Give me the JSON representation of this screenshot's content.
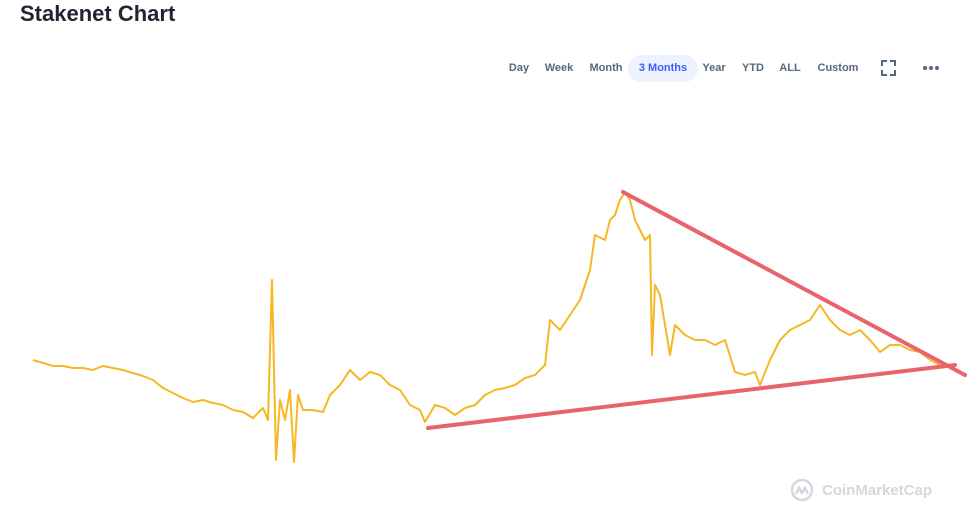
{
  "chart_data": {
    "type": "line",
    "title": "Stakenet Chart",
    "x": [
      0,
      10,
      20,
      30,
      40,
      50,
      60,
      70,
      80,
      90,
      100,
      110,
      120,
      130,
      140,
      150,
      160,
      170,
      180,
      190,
      200,
      210,
      220,
      230,
      235,
      239,
      243,
      247,
      252,
      257,
      261,
      265,
      270,
      280,
      290,
      297,
      307,
      317,
      327,
      337,
      347,
      357,
      367,
      377,
      387,
      392,
      402,
      412,
      422,
      432,
      442,
      452,
      462,
      472,
      482,
      492,
      502,
      512,
      517,
      527,
      537,
      547,
      552,
      557,
      562,
      572,
      577,
      582,
      587,
      592,
      597,
      602,
      607,
      612,
      617,
      619,
      622,
      627,
      637,
      642,
      652,
      662,
      672,
      682,
      692,
      702,
      712,
      722,
      727,
      737,
      747,
      757,
      767,
      777,
      787,
      797,
      807,
      817,
      827,
      837,
      847,
      857,
      867,
      877,
      887,
      897,
      907
    ],
    "series": [
      {
        "color": "#f6b723",
        "values": [
          120,
          117,
          114,
          114,
          112,
          112,
          110,
          114,
          112,
          110,
          107,
          104,
          100,
          92,
          87,
          82,
          78,
          80,
          77,
          75,
          70,
          68,
          62,
          72,
          60,
          200,
          20,
          80,
          60,
          90,
          18,
          85,
          70,
          70,
          68,
          85,
          95,
          110,
          100,
          108,
          105,
          95,
          90,
          75,
          70,
          58,
          75,
          72,
          65,
          72,
          75,
          85,
          90,
          92,
          95,
          102,
          105,
          115,
          160,
          150,
          165,
          180,
          195,
          210,
          245,
          240,
          260,
          265,
          280,
          288,
          280,
          260,
          250,
          240,
          245,
          125,
          195,
          185,
          125,
          155,
          145,
          140,
          140,
          135,
          140,
          108,
          105,
          108,
          95,
          120,
          140,
          150,
          155,
          160,
          175,
          160,
          150,
          145,
          150,
          140,
          128,
          135,
          135,
          130,
          128,
          120,
          115
        ]
      }
    ],
    "xlim": [
      0,
      930
    ],
    "ylim": [
      0,
      300
    ],
    "trendlines": [
      {
        "color": "#e8636b",
        "x": [
          590,
          932
        ],
        "y": [
          288,
          105
        ]
      },
      {
        "color": "#e8636b",
        "x": [
          395,
          922
        ],
        "y": [
          52,
          115
        ]
      }
    ]
  },
  "toolbar": {
    "buttons": [
      "Day",
      "Week",
      "Month",
      "3 Months",
      "Year",
      "YTD",
      "ALL",
      "Custom"
    ],
    "active": 3
  },
  "watermark": "CoinMarketCap"
}
